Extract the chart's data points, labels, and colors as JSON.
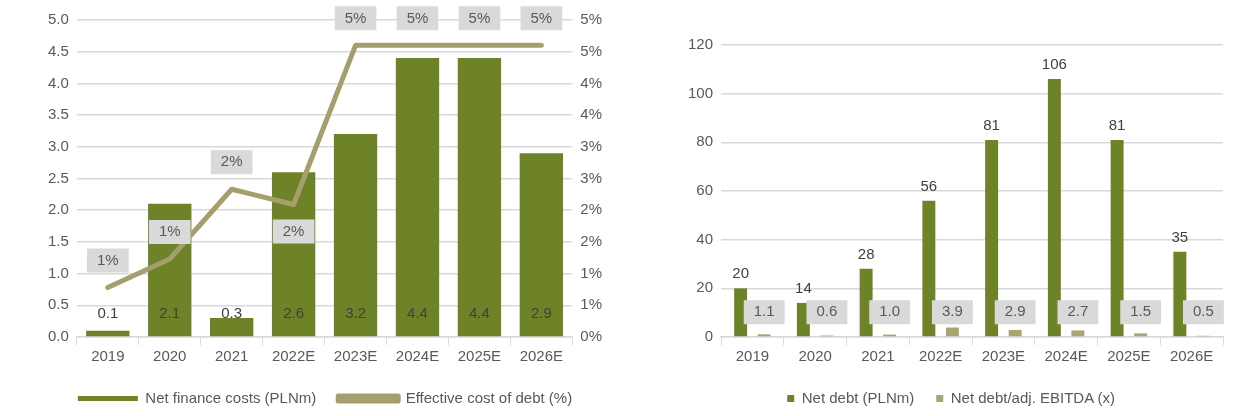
{
  "chart_data": [
    {
      "type": "bar",
      "categories": [
        "2019",
        "2020",
        "2021",
        "2022E",
        "2023E",
        "2024E",
        "2025E",
        "2026E"
      ],
      "series": [
        {
          "name": "Net finance costs (PLNm)",
          "color": "#6e8228",
          "values": [
            0.1,
            2.1,
            0.3,
            2.6,
            3.2,
            4.4,
            4.4,
            2.9
          ],
          "value_labels": [
            "0.1",
            "2.1",
            "0.3",
            "2.6",
            "3.2",
            "4.4",
            "4.4",
            "2.9"
          ]
        },
        {
          "name": "Effective cost of debt (%)",
          "type": "line",
          "axis": "y2",
          "color": "#a59f6e",
          "marker": "none",
          "values": [
            0.78,
            1.23,
            2.33,
            2.09,
            4.6,
            4.6,
            4.6,
            4.6
          ],
          "value_labels": [
            "1%",
            "1%",
            "2%",
            "2%",
            "5%",
            "5%",
            "5%",
            "5%"
          ]
        }
      ],
      "ylim": [
        0,
        5
      ],
      "yticks": [
        {
          "value": 0,
          "label": "0.0"
        },
        {
          "value": 0.5,
          "label": "0.5"
        },
        {
          "value": 1,
          "label": "1.0"
        },
        {
          "value": 1.5,
          "label": "1.5"
        },
        {
          "value": 2,
          "label": "2.0"
        },
        {
          "value": 2.5,
          "label": "2.5"
        },
        {
          "value": 3,
          "label": "3.0"
        },
        {
          "value": 3.5,
          "label": "3.5"
        },
        {
          "value": 4,
          "label": "4.0"
        },
        {
          "value": 4.5,
          "label": "4.5"
        },
        {
          "value": 5,
          "label": "5.0"
        }
      ],
      "y2lim": [
        0,
        5
      ],
      "y2ticks": [
        {
          "value": 0,
          "label": "0%"
        },
        {
          "value": 0.5,
          "label": "1%"
        },
        {
          "value": 1,
          "label": "1%"
        },
        {
          "value": 1.5,
          "label": "2%"
        },
        {
          "value": 2,
          "label": "2%"
        },
        {
          "value": 2.5,
          "label": "3%"
        },
        {
          "value": 3,
          "label": "3%"
        },
        {
          "value": 3.5,
          "label": "4%"
        },
        {
          "value": 4,
          "label": "4%"
        },
        {
          "value": 4.5,
          "label": "5%"
        },
        {
          "value": 5,
          "label": "5%"
        }
      ],
      "grid": "y",
      "legend": "bottom"
    },
    {
      "type": "bar",
      "categories": [
        "2019",
        "2020",
        "2021",
        "2022E",
        "2023E",
        "2024E",
        "2025E",
        "2026E"
      ],
      "series": [
        {
          "name": "Net debt (PLNm)",
          "color": "#6e8228",
          "values": [
            20,
            14,
            28,
            56,
            81,
            106,
            81,
            35
          ],
          "value_labels": [
            "20",
            "14",
            "28",
            "56",
            "81",
            "106",
            "81",
            "35"
          ]
        },
        {
          "name": "Net debt/adj. EBITDA (x)",
          "color": "#aba472",
          "values": [
            1.1,
            0.6,
            1.0,
            3.9,
            2.9,
            2.7,
            1.5,
            0.5
          ],
          "value_labels": [
            "1.1",
            "0.6",
            "1.0",
            "3.9",
            "2.9",
            "2.7",
            "1.5",
            "0.5"
          ]
        }
      ],
      "ylim": [
        0,
        120
      ],
      "yticks": [
        0,
        20,
        40,
        60,
        80,
        100,
        120
      ],
      "grid": "y",
      "legend": "bottom"
    }
  ]
}
